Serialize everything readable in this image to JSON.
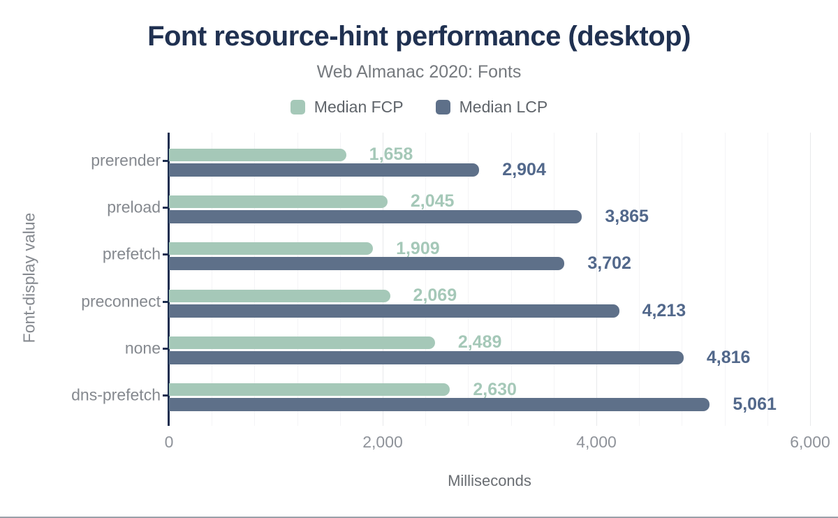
{
  "header": {
    "title": "Font resource-hint performance (desktop)",
    "subtitle": "Web Almanac 2020: Fonts"
  },
  "legend": [
    {
      "label": "Median FCP",
      "color": "#a5c8b8"
    },
    {
      "label": "Median LCP",
      "color": "#5e7089"
    }
  ],
  "colors": {
    "title_navy": "#203151",
    "axis_line_navy": "#1b2d4f",
    "fcp_green": "#a5c8b8",
    "lcp_slate": "#5e7089",
    "lcp_label": "#52688b",
    "muted_text": "#85898f",
    "tick_text": "#8f939a",
    "grid_minor": "#f4f4f6",
    "grid_major": "#e8e9eb",
    "bottom_border": "#9aa0a8"
  },
  "chart_data": {
    "type": "bar",
    "orientation": "horizontal",
    "title": "Font resource-hint performance (desktop)",
    "subtitle": "Web Almanac 2020: Fonts",
    "categories": [
      "prerender",
      "preload",
      "prefetch",
      "preconnect",
      "none",
      "dns-prefetch"
    ],
    "series": [
      {
        "name": "Median FCP",
        "color": "#a5c8b8",
        "label_color": "#a5c8b8",
        "values": [
          1658,
          2045,
          1909,
          2069,
          2489,
          2630
        ],
        "formatted_values": [
          "1,658",
          "2,045",
          "1,909",
          "2,069",
          "2,489",
          "2,630"
        ]
      },
      {
        "name": "Median LCP",
        "color": "#5e7089",
        "label_color": "#52688b",
        "values": [
          2904,
          3865,
          3702,
          4213,
          4816,
          5061
        ],
        "formatted_values": [
          "2,904",
          "3,865",
          "3,702",
          "4,213",
          "4,816",
          "5,061"
        ]
      }
    ],
    "xlabel": "Milliseconds",
    "ylabel": "Font-display value",
    "xlim": [
      0,
      6000
    ],
    "x_ticks": [
      0,
      2000,
      4000,
      6000
    ],
    "x_tick_labels": [
      "0",
      "2,000",
      "4,000",
      "6,000"
    ],
    "minor_grid_step": 400,
    "grid": "on",
    "legend_position": "top"
  }
}
